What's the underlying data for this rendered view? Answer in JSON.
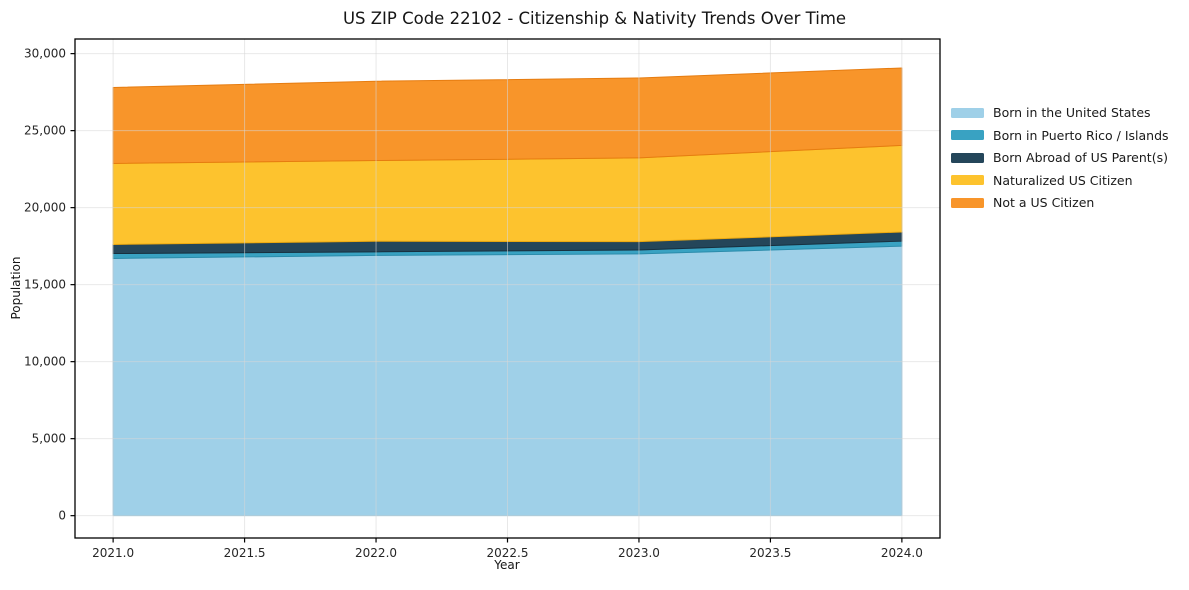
{
  "chart_data": {
    "type": "area",
    "stacked": true,
    "title": "US ZIP Code 22102 - Citizenship & Nativity Trends Over Time",
    "xlabel": "Year",
    "ylabel": "Population",
    "x": [
      2021,
      2022,
      2023,
      2024
    ],
    "series": [
      {
        "name": "Born in the United States",
        "color": "#9fd0e8",
        "edge_color": "#86bfdc",
        "values": [
          16700,
          16900,
          17000,
          17500
        ]
      },
      {
        "name": "Born in Puerto Rico / Islands",
        "color": "#39a2c2",
        "edge_color": "#2b8cab",
        "values": [
          320,
          230,
          250,
          330
        ]
      },
      {
        "name": "Born Abroad of US Parent(s)",
        "color": "#24465a",
        "edge_color": "#17303f",
        "values": [
          590,
          690,
          540,
          590
        ]
      },
      {
        "name": "Naturalized US Citizen",
        "color": "#fdc32e",
        "edge_color": "#eda90f",
        "values": [
          5260,
          5240,
          5440,
          5620
        ]
      },
      {
        "name": "Not a US Citizen",
        "color": "#f8952a",
        "edge_color": "#e67c10",
        "values": [
          4930,
          5150,
          5190,
          5030
        ]
      }
    ],
    "x_ticks": [
      2021.0,
      2021.5,
      2022.0,
      2022.5,
      2023.0,
      2023.5,
      2024.0
    ],
    "x_tick_labels": [
      "2021.0",
      "2021.5",
      "2022.0",
      "2022.5",
      "2023.0",
      "2023.5",
      "2024.0"
    ],
    "y_ticks": [
      0,
      5000,
      10000,
      15000,
      20000,
      25000,
      30000
    ],
    "y_tick_labels": [
      "0",
      "5,000",
      "10,000",
      "15,000",
      "20,000",
      "25,000",
      "30,000"
    ],
    "xlim": [
      2020.855,
      2024.145
    ],
    "ylim": [
      -1450,
      30950
    ],
    "grid": true,
    "legend_position": "right",
    "colors": {
      "grid": "#d7d7d7",
      "spine": "#000000",
      "tick_text": "#262626",
      "background": "#ffffff"
    }
  }
}
